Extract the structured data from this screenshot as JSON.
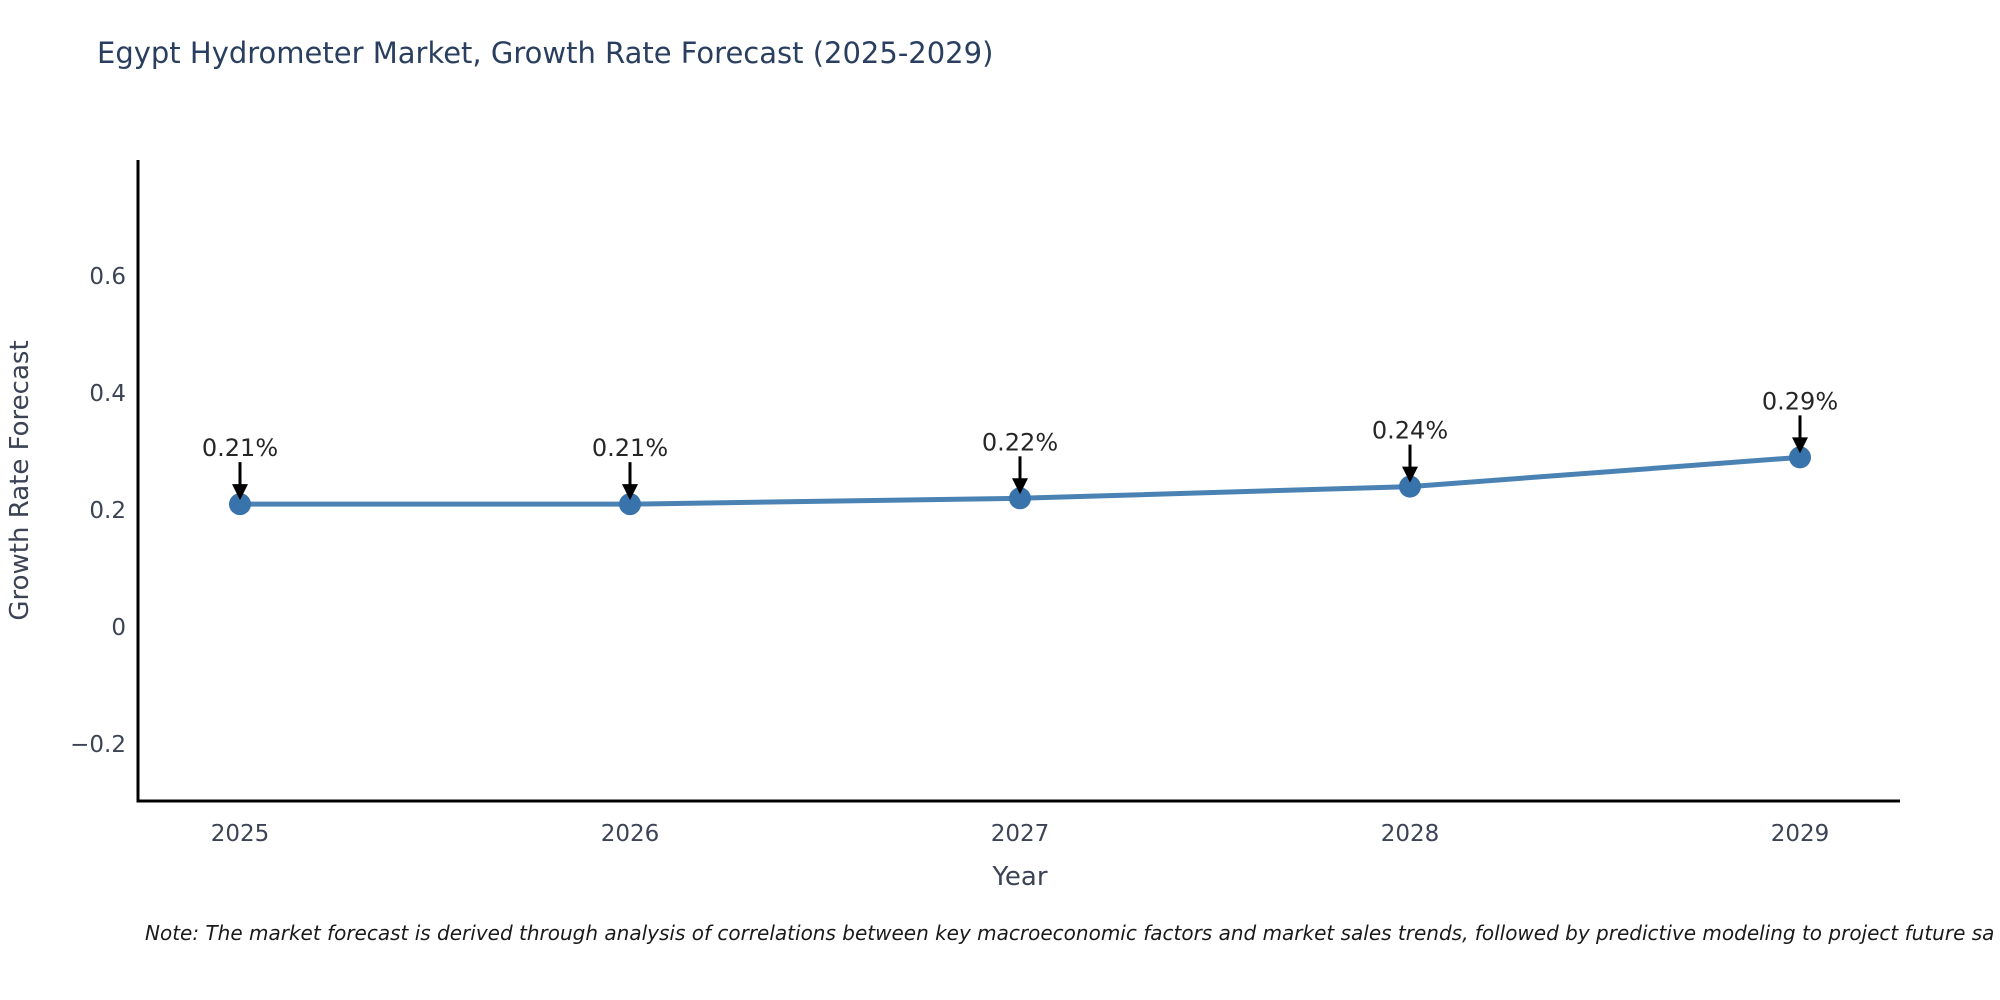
{
  "title": "Egypt Hydrometer Market, Growth Rate Forecast (2025-2029)",
  "note": "Note: The market forecast is derived through analysis of correlations between key macroeconomic factors and market sales trends, followed by predictive modeling to project future sa",
  "chart_data": {
    "type": "line",
    "title": "Egypt Hydrometer Market, Growth Rate Forecast (2025-2029)",
    "x": [
      2025,
      2026,
      2027,
      2028,
      2029
    ],
    "xtick_labels": [
      "2025",
      "2026",
      "2027",
      "2028",
      "2029"
    ],
    "values": [
      0.21,
      0.21,
      0.22,
      0.24,
      0.29
    ],
    "point_labels": [
      "0.21%",
      "0.21%",
      "0.22%",
      "0.24%",
      "0.29%"
    ],
    "xlabel": "Year",
    "ylabel": "Growth Rate Forecast",
    "yticks": [
      -0.2,
      0,
      0.2,
      0.4,
      0.6
    ],
    "ytick_labels": [
      "−0.2",
      "0",
      "0.2",
      "0.4",
      "0.6"
    ],
    "ylim": [
      -0.3,
      0.8
    ],
    "grid": false,
    "legend": "none",
    "colors": {
      "line": "#4a82b4",
      "marker": "#3873ab",
      "arrow": "#000000",
      "spine": "#000000",
      "title_text": "#2a3f5f",
      "tick_text": "#3b4355"
    }
  }
}
